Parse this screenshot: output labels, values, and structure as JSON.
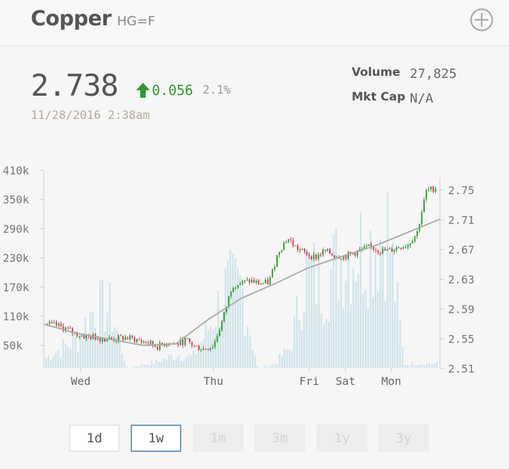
{
  "header": {
    "title": "Copper",
    "symbol": "HG=F",
    "add_icon": "circle-plus-icon"
  },
  "quote": {
    "price": "2.738",
    "change": "0.056",
    "change_direction": "up",
    "change_percent": "2.1%",
    "timestamp": "11/28/2016 2:38am",
    "colors": {
      "up": "#2e9a2e",
      "muted": "#b4ab9c"
    }
  },
  "stats": [
    {
      "label": "Volume",
      "value": "27,825"
    },
    {
      "label": "Mkt Cap",
      "value": "N/A"
    }
  ],
  "chart_data": {
    "type": "candlestick",
    "x_labels": [
      "Wed",
      "Thu",
      "Fri",
      "Sat",
      "Mon"
    ],
    "volume_axis": {
      "ticks": [
        "410k",
        "350k",
        "290k",
        "230k",
        "170k",
        "110k",
        "50k"
      ],
      "ylim": [
        0,
        410000
      ]
    },
    "price_axis": {
      "ticks": [
        "2.75",
        "2.71",
        "2.67",
        "2.63",
        "2.59",
        "2.55",
        "2.51"
      ],
      "ylim": [
        2.51,
        2.765
      ]
    },
    "price_series_approx": [
      2.568,
      2.566,
      2.562,
      2.556,
      2.552,
      2.551,
      2.549,
      2.548,
      2.55,
      2.549,
      2.546,
      2.543,
      2.538,
      2.544,
      2.541,
      2.547,
      2.538,
      2.535,
      2.54,
      2.575,
      2.62,
      2.623,
      2.626,
      2.622,
      2.624,
      2.665,
      2.683,
      2.669,
      2.662,
      2.657,
      2.666,
      2.66,
      2.658,
      2.662,
      2.667,
      2.671,
      2.666,
      2.666,
      2.671,
      2.674,
      2.69,
      2.745,
      2.75
    ],
    "moving_average_approx": [
      2.568,
      2.556,
      2.548,
      2.54,
      2.542,
      2.575,
      2.603,
      2.622,
      2.643,
      2.658,
      2.672,
      2.69,
      2.708
    ],
    "volume_approx": [
      30000,
      60000,
      85000,
      180000,
      170000,
      0,
      10000,
      20000,
      40000,
      30000,
      120000,
      230000,
      240000,
      0,
      10000,
      60000,
      290000,
      240000,
      320000,
      350000,
      360000,
      410000,
      10000,
      15000,
      12000
    ],
    "colors": {
      "up_candle": "#2f9a2f",
      "down_candle": "#d23a50",
      "volume": "#cfe4ec",
      "moving_average": "#aaaaaa",
      "axis": "#c9c9c9"
    }
  },
  "ranges": [
    {
      "label": "1d",
      "state": "enabled"
    },
    {
      "label": "1w",
      "state": "selected"
    },
    {
      "label": "1m",
      "state": "disabled"
    },
    {
      "label": "3m",
      "state": "disabled"
    },
    {
      "label": "1y",
      "state": "disabled"
    },
    {
      "label": "3y",
      "state": "disabled"
    }
  ]
}
